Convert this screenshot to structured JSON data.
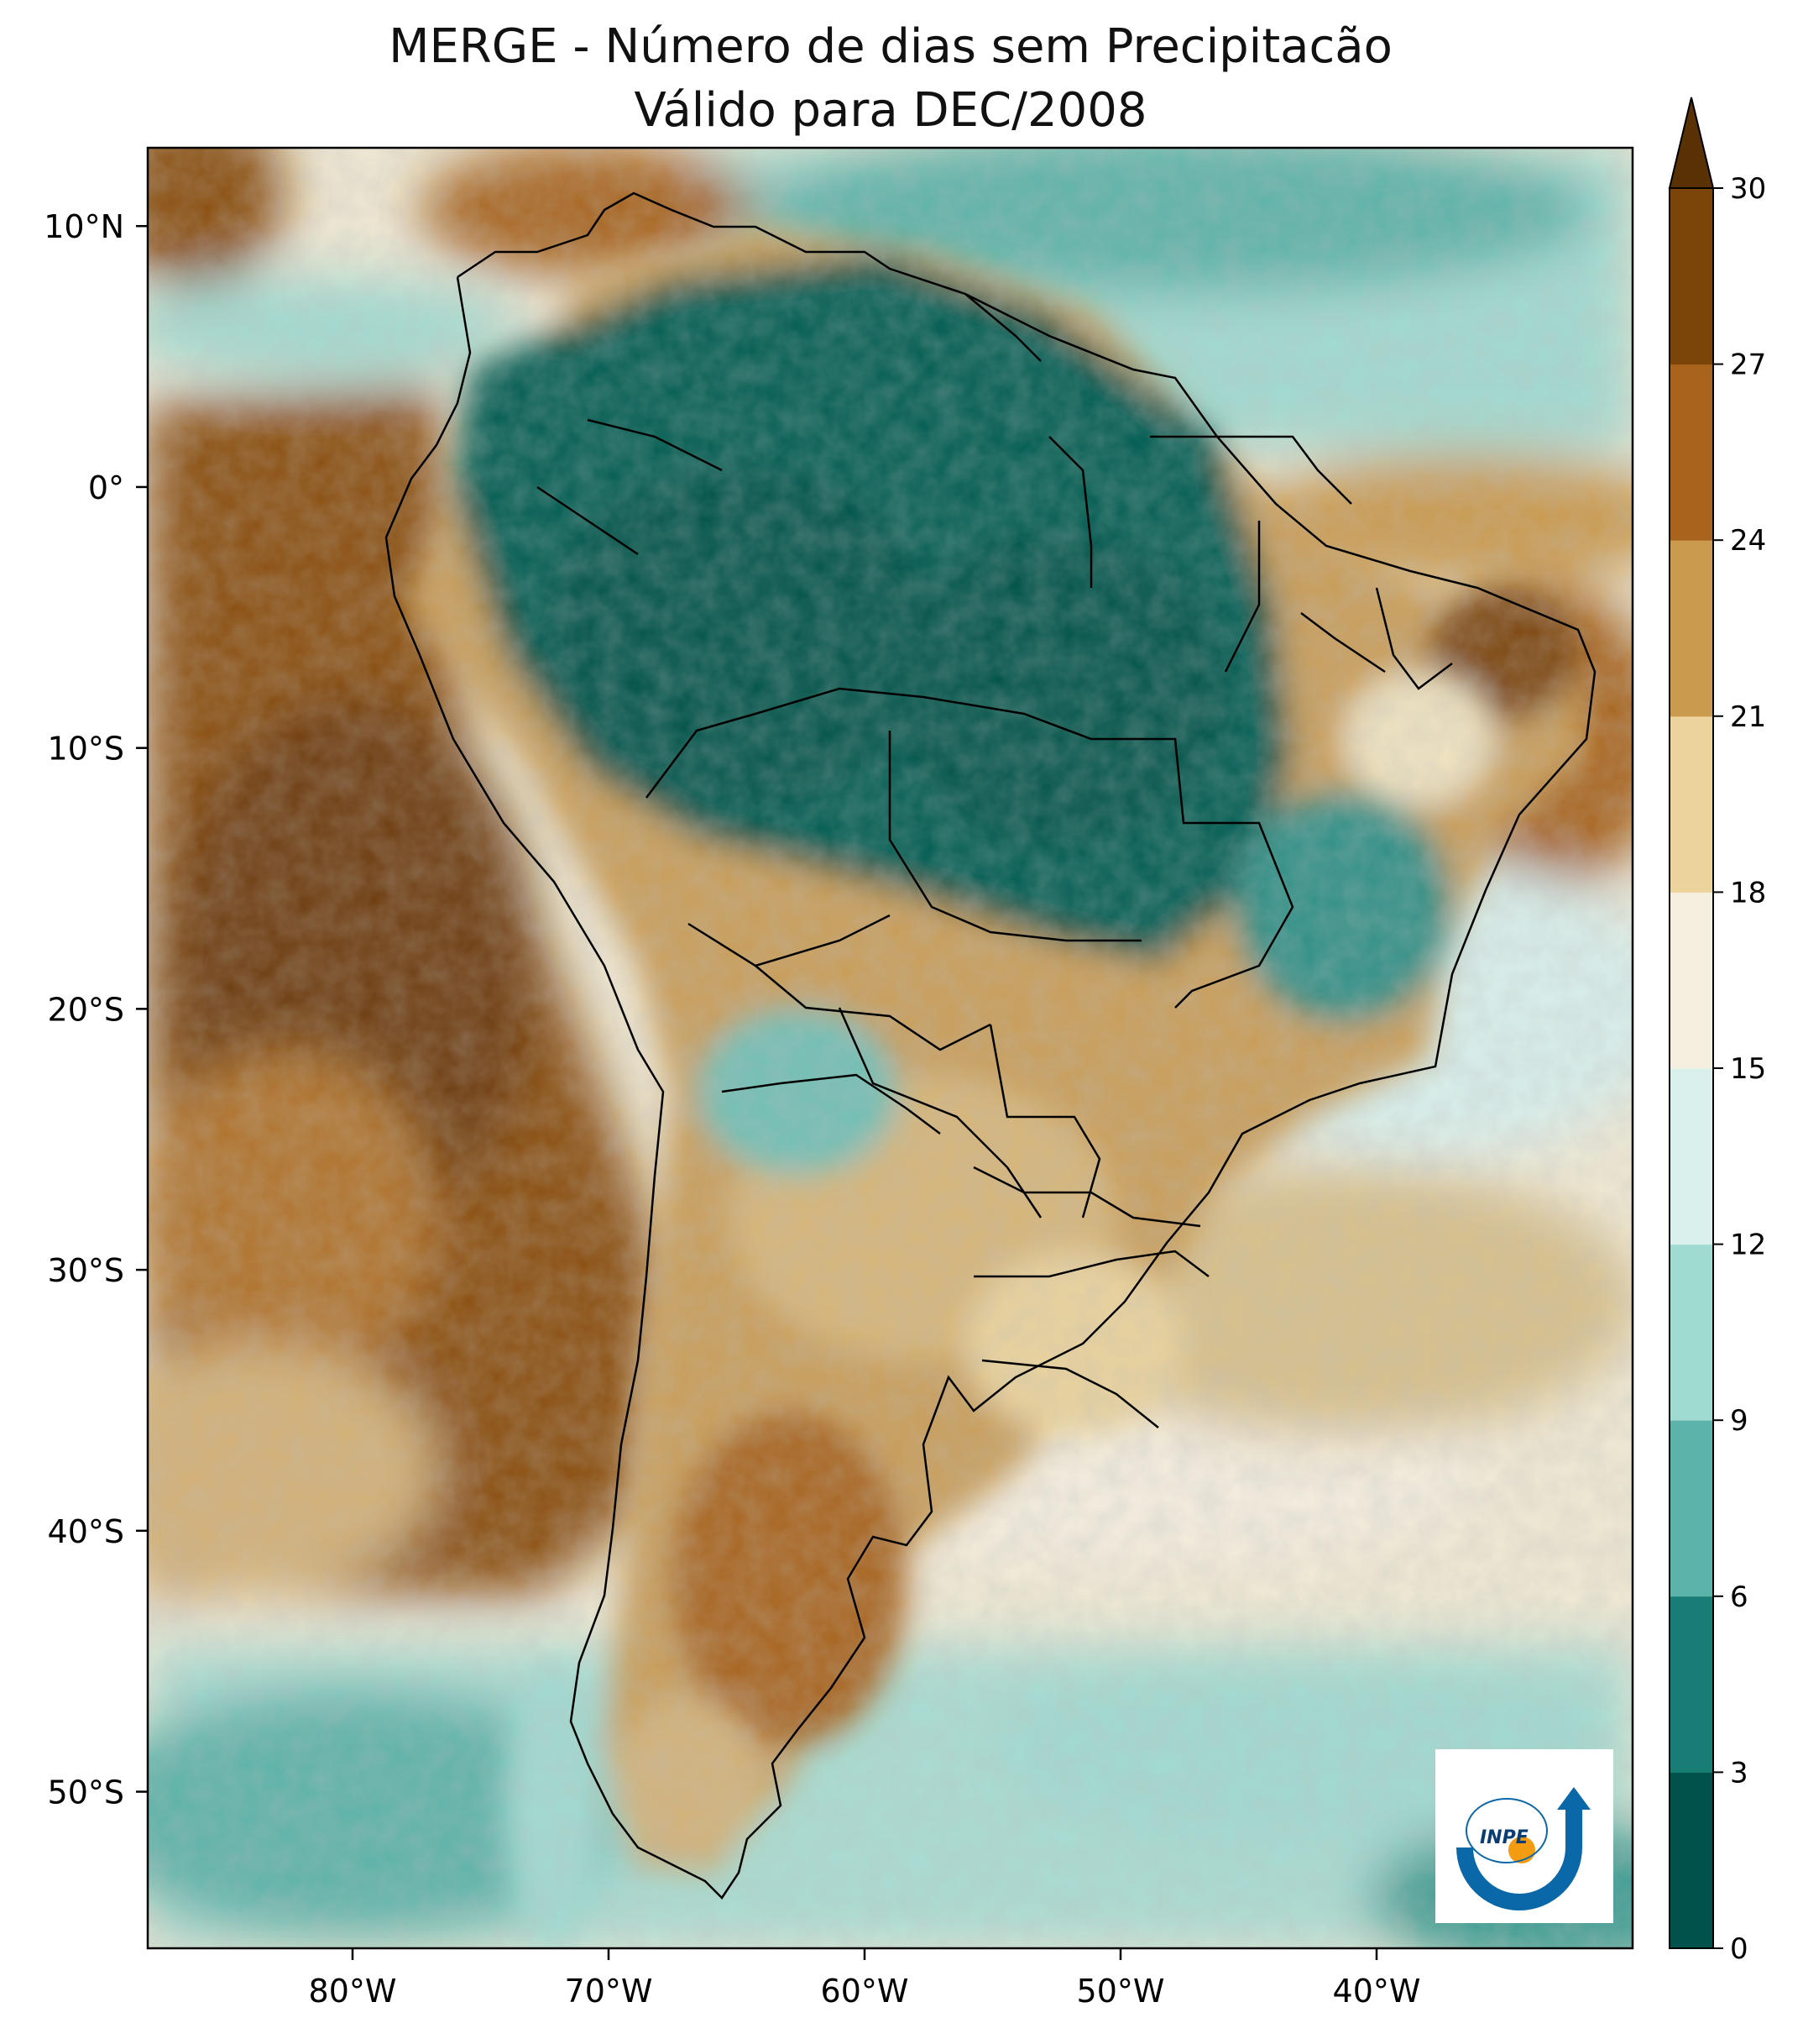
{
  "title": {
    "line1": "MERGE - Número de dias sem Precipitacão",
    "line2": "Válido para DEC/2008"
  },
  "map": {
    "region": "South America",
    "lon_range": [
      -88,
      -30
    ],
    "lat_range": [
      -56,
      13
    ],
    "lat_ticks": [
      {
        "value": 10,
        "label": "10°N"
      },
      {
        "value": 0,
        "label": "0°"
      },
      {
        "value": -10,
        "label": "10°S"
      },
      {
        "value": -20,
        "label": "20°S"
      },
      {
        "value": -30,
        "label": "30°S"
      },
      {
        "value": -40,
        "label": "40°S"
      },
      {
        "value": -50,
        "label": "50°S"
      }
    ],
    "lon_ticks": [
      {
        "value": -80,
        "label": "80°W"
      },
      {
        "value": -70,
        "label": "70°W"
      },
      {
        "value": -60,
        "label": "60°W"
      },
      {
        "value": -50,
        "label": "50°W"
      },
      {
        "value": -40,
        "label": "40°W"
      }
    ]
  },
  "colorbar": {
    "levels": [
      0,
      3,
      6,
      9,
      12,
      15,
      18,
      21,
      24,
      27,
      30
    ],
    "labels": [
      "0",
      "3",
      "6",
      "9",
      "12",
      "15",
      "18",
      "21",
      "24",
      "27",
      "30"
    ],
    "colors": [
      "#01524a",
      "#187d74",
      "#5cb3a9",
      "#a0dbd1",
      "#d9f0ec",
      "#f5efdf",
      "#ebd39b",
      "#ca9a4e",
      "#a8641d",
      "#7b4409"
    ],
    "extend_color": "#5a3005"
  },
  "colors": {
    "wet": "#015a4f",
    "moist": "#2e8f85",
    "neutral": "#f5efdf",
    "dry": "#c8964c",
    "very_dry": "#7b4409"
  },
  "logo": {
    "text": "INPE"
  }
}
